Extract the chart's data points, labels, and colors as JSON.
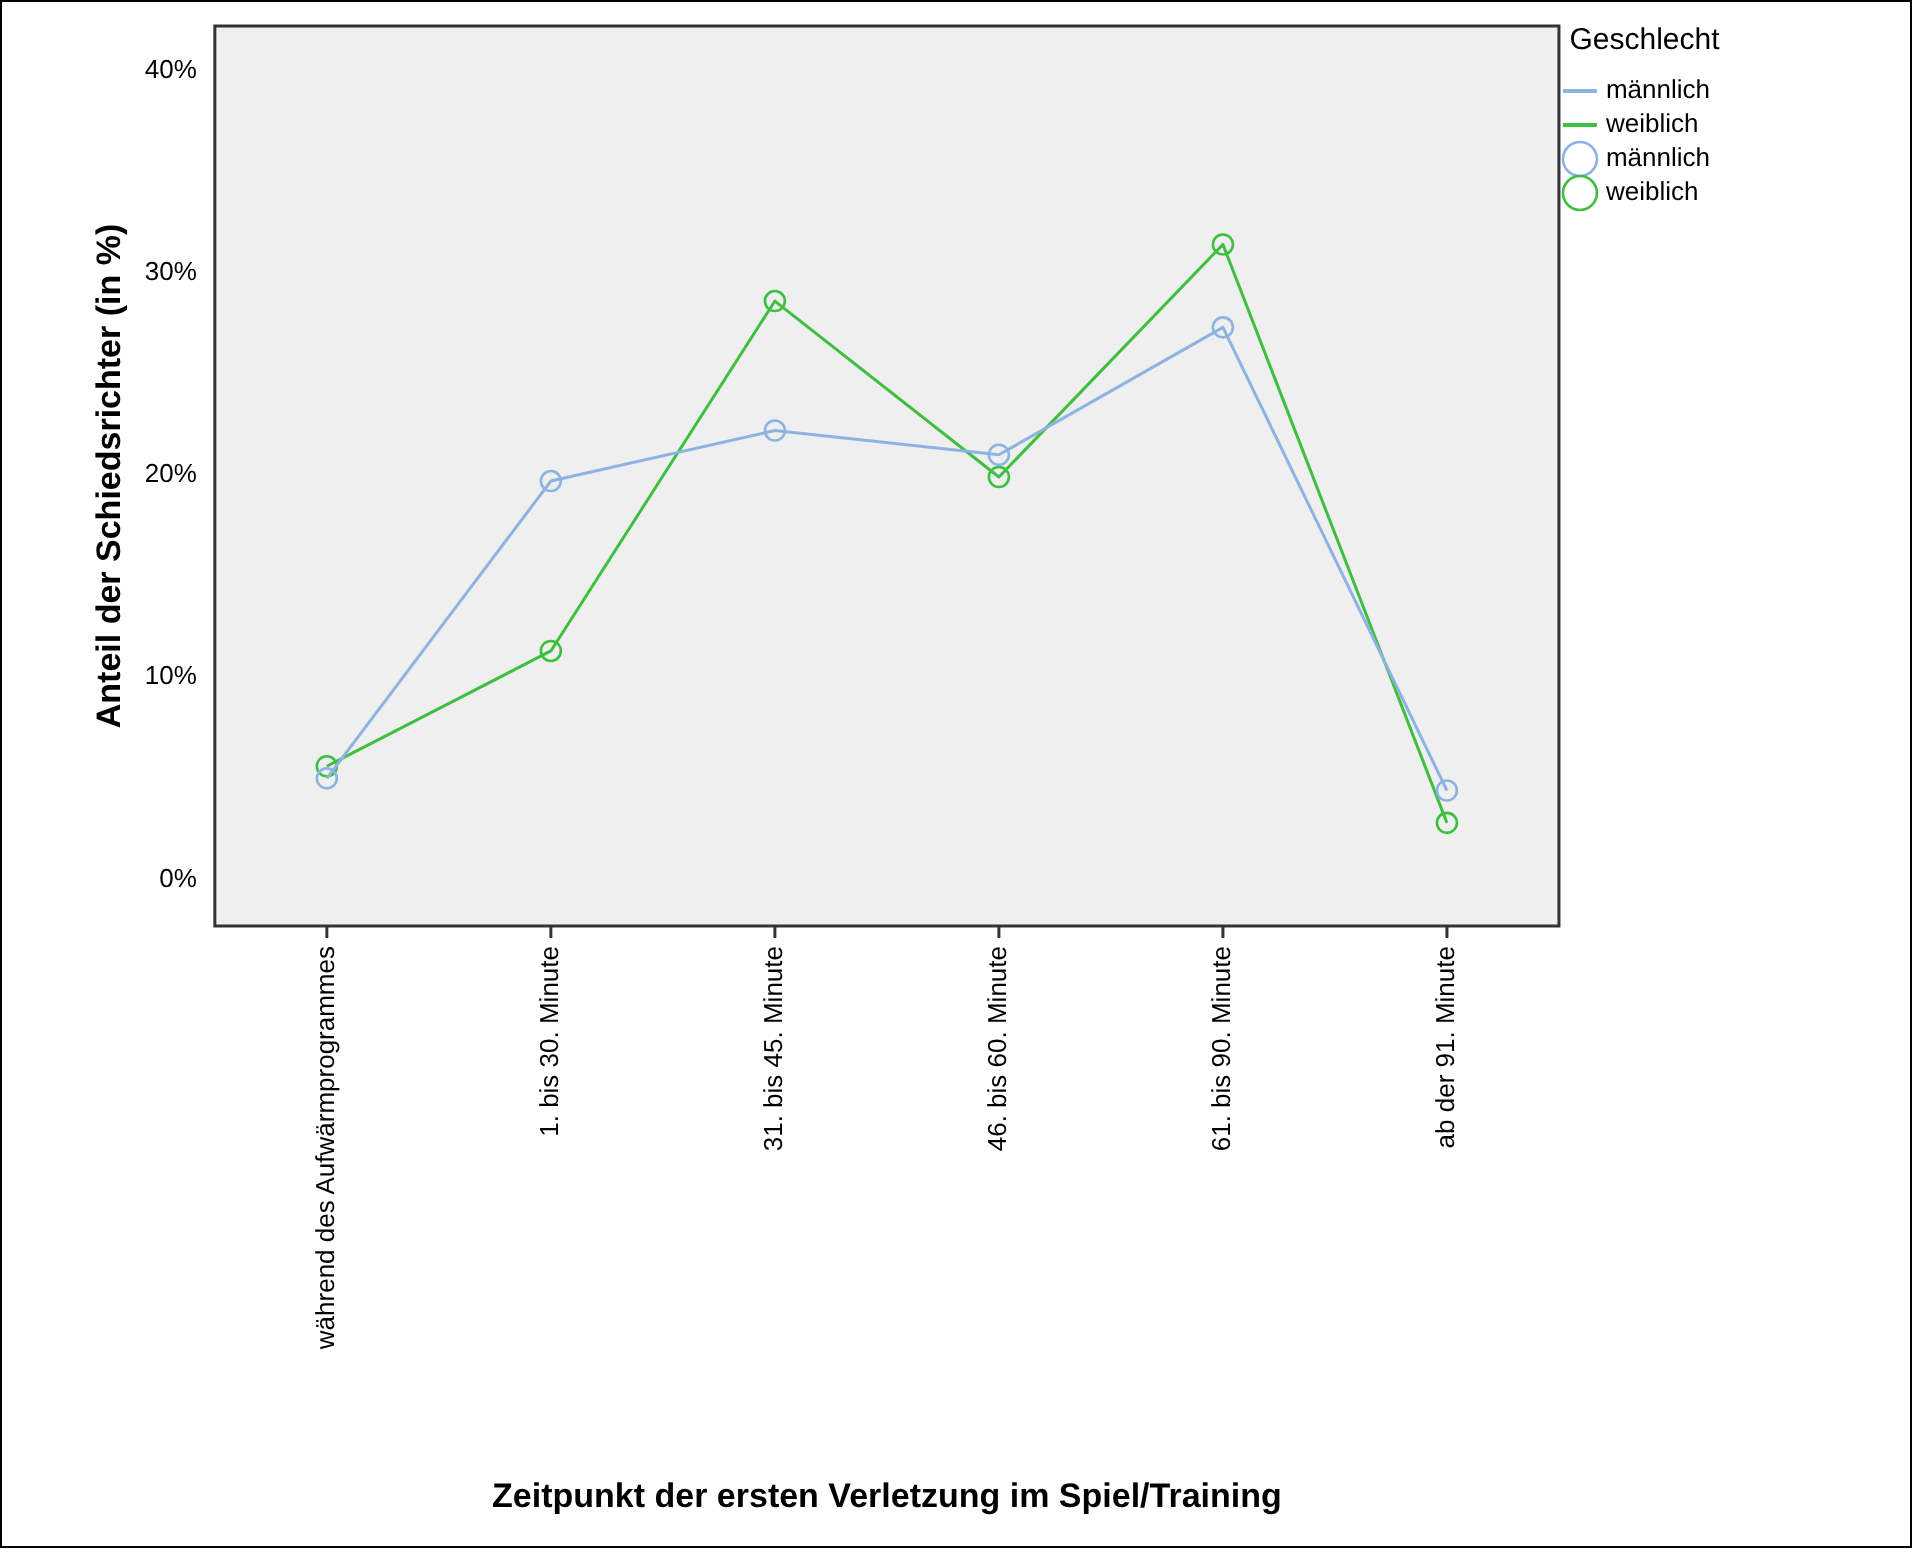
{
  "chart_data": {
    "type": "line",
    "xlabel": "Zeitpunkt der ersten Verletzung im Spiel/Training",
    "ylabel": "Anteil der Schiedsrichter (in %)",
    "legend_title": "Geschlecht",
    "categories": [
      "während des Aufwärmprogrammes",
      "1. bis 30. Minute",
      "31. bis 45. Minute",
      "46. bis 60. Minute",
      "61. bis 90. Minute",
      "ab der 91. Minute"
    ],
    "series": [
      {
        "name": "männlich",
        "color": "#8db3e2",
        "values": [
          5.0,
          19.7,
          22.2,
          21.0,
          27.3,
          4.4
        ]
      },
      {
        "name": "weiblich",
        "color": "#3fbf3f",
        "values": [
          5.6,
          11.3,
          28.6,
          19.9,
          31.4,
          2.8
        ]
      }
    ],
    "ylim": [
      -2.3,
      42.2
    ],
    "yticks": [
      {
        "value": 0,
        "label": "0%"
      },
      {
        "value": 10,
        "label": "10%"
      },
      {
        "value": 20,
        "label": "20%"
      },
      {
        "value": 30,
        "label": "30%"
      },
      {
        "value": 40,
        "label": "40%"
      }
    ],
    "marker": "circle",
    "line_style": "solid",
    "legend": "top right",
    "grid": false
  }
}
